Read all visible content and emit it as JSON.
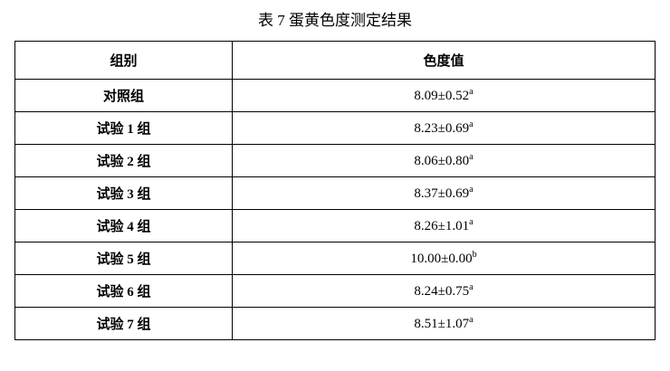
{
  "title": "表 7 蛋黄色度测定结果",
  "headers": [
    "组别",
    "色度值"
  ],
  "rows": [
    {
      "group": "对照组",
      "value": "8.09±0.52",
      "sig": "a"
    },
    {
      "group": "试验 1 组",
      "value": "8.23±0.69",
      "sig": "a"
    },
    {
      "group": "试验 2 组",
      "value": "8.06±0.80",
      "sig": "a"
    },
    {
      "group": "试验 3 组",
      "value": "8.37±0.69",
      "sig": "a"
    },
    {
      "group": "试验 4 组",
      "value": "8.26±1.01",
      "sig": "a"
    },
    {
      "group": "试验 5 组",
      "value": "10.00±0.00",
      "sig": "b"
    },
    {
      "group": "试验 6 组",
      "value": "8.24±0.75",
      "sig": "a"
    },
    {
      "group": "试验 7 组",
      "value": "8.51±1.07",
      "sig": "a"
    }
  ]
}
